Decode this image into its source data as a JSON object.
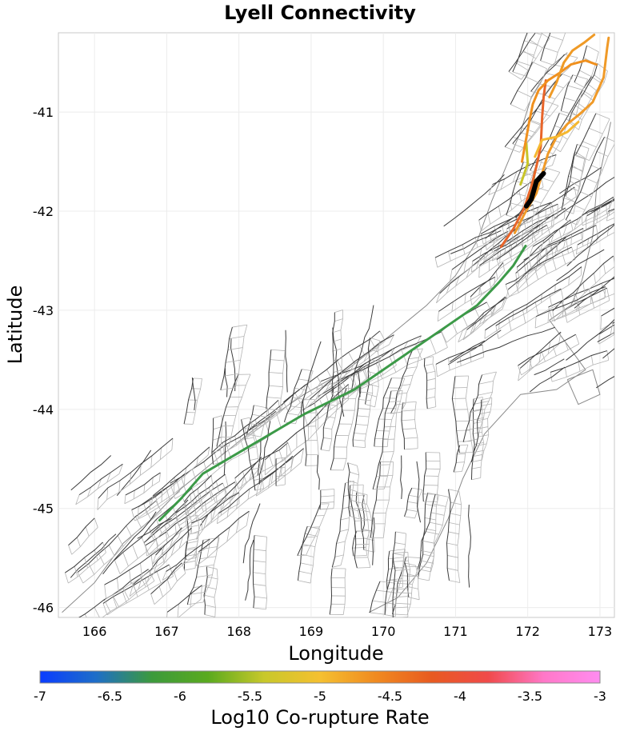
{
  "map": {
    "title": "Lyell Connectivity",
    "xlabel": "Longitude",
    "ylabel": "Latitude",
    "xlim": [
      165.5,
      173.2
    ],
    "ylim": [
      -46.1,
      -40.2
    ],
    "grid": true,
    "xticks": [
      "166",
      "167",
      "168",
      "169",
      "170",
      "171",
      "172",
      "173"
    ],
    "yticks": [
      "-41",
      "-42",
      "-43",
      "-44",
      "-45",
      "-46"
    ],
    "xtick_values": [
      166,
      167,
      168,
      169,
      170,
      171,
      172,
      173
    ],
    "ytick_values": [
      -41,
      -42,
      -43,
      -44,
      -45,
      -46
    ],
    "colors": {
      "fault_trace": "#3c3c3c",
      "fault_outline": "#b4b4b4",
      "coastline": "#8a8a8a",
      "source_fault": "#000000"
    }
  },
  "colorbar": {
    "label": "Log10 Co-rupture Rate",
    "ticks": [
      "-7",
      "-6.5",
      "-6",
      "-5.5",
      "-5",
      "-4.5",
      "-4",
      "-3.5",
      "-3"
    ],
    "tick_values": [
      -7,
      -6.5,
      -6,
      -5.5,
      -5,
      -4.5,
      -4,
      -3.5,
      -3
    ],
    "range": [
      -7,
      -3
    ],
    "gradient": [
      "#0a3cff",
      "#1e6ec8",
      "#3c9a3c",
      "#5aaa1e",
      "#c8c82a",
      "#f5c030",
      "#f08a20",
      "#e85a20",
      "#f04a4a",
      "#ff78c8",
      "#ff8cf0"
    ]
  },
  "chart_data": {
    "type": "map",
    "title": "Lyell Connectivity",
    "xlabel": "Longitude",
    "ylabel": "Latitude",
    "source_fault": {
      "color": "#000000",
      "points": [
        [
          172.22,
          -41.62
        ],
        [
          172.12,
          -41.7
        ],
        [
          172.05,
          -41.88
        ],
        [
          171.98,
          -41.95
        ]
      ]
    },
    "connected_faults": [
      {
        "log10_rate": -6.0,
        "color": "#3c9a48",
        "points": [
          [
            166.9,
            -45.12
          ],
          [
            167.2,
            -44.9
          ],
          [
            167.5,
            -44.65
          ],
          [
            168.2,
            -44.35
          ],
          [
            168.9,
            -44.05
          ],
          [
            169.6,
            -43.8
          ],
          [
            170.2,
            -43.5
          ],
          [
            170.8,
            -43.2
          ],
          [
            171.3,
            -42.95
          ],
          [
            171.6,
            -42.72
          ],
          [
            171.8,
            -42.55
          ],
          [
            171.97,
            -42.35
          ]
        ]
      },
      {
        "log10_rate": -6.0,
        "color": "#52a030",
        "points": [
          [
            172.0,
            -41.95
          ],
          [
            172.05,
            -41.8
          ],
          [
            172.1,
            -41.6
          ]
        ]
      },
      {
        "log10_rate": -4.2,
        "color": "#e8652a",
        "points": [
          [
            171.63,
            -42.36
          ],
          [
            171.8,
            -42.18
          ],
          [
            171.95,
            -41.97
          ],
          [
            172.05,
            -41.75
          ],
          [
            172.12,
            -41.55
          ],
          [
            172.18,
            -41.35
          ],
          [
            172.2,
            -41.05
          ],
          [
            172.22,
            -40.85
          ],
          [
            172.25,
            -40.68
          ]
        ]
      },
      {
        "log10_rate": -5.0,
        "color": "#c8c428",
        "points": [
          [
            171.9,
            -41.73
          ],
          [
            172.0,
            -41.52
          ],
          [
            171.98,
            -41.32
          ]
        ]
      },
      {
        "log10_rate": -4.4,
        "color": "#f09a28",
        "points": [
          [
            171.82,
            -42.22
          ],
          [
            171.96,
            -42.02
          ],
          [
            172.12,
            -41.82
          ],
          [
            172.2,
            -41.62
          ],
          [
            172.28,
            -41.42
          ],
          [
            172.4,
            -41.25
          ],
          [
            172.55,
            -41.12
          ],
          [
            172.72,
            -41.02
          ],
          [
            172.9,
            -40.9
          ],
          [
            173.05,
            -40.65
          ],
          [
            173.1,
            -40.35
          ],
          [
            173.12,
            -40.25
          ]
        ]
      },
      {
        "log10_rate": -4.6,
        "color": "#f5b830",
        "points": [
          [
            172.1,
            -41.45
          ],
          [
            172.2,
            -41.28
          ],
          [
            172.4,
            -41.25
          ],
          [
            172.55,
            -41.2
          ],
          [
            172.7,
            -41.1
          ]
        ]
      },
      {
        "log10_rate": -4.3,
        "color": "#f0901e",
        "points": [
          [
            171.92,
            -41.5
          ],
          [
            171.97,
            -41.3
          ],
          [
            172.02,
            -41.1
          ],
          [
            172.07,
            -40.92
          ],
          [
            172.15,
            -40.78
          ],
          [
            172.28,
            -40.68
          ],
          [
            172.45,
            -40.6
          ],
          [
            172.6,
            -40.52
          ],
          [
            172.8,
            -40.48
          ],
          [
            172.95,
            -40.52
          ]
        ]
      },
      {
        "log10_rate": -4.4,
        "color": "#ef9a26",
        "points": [
          [
            172.3,
            -40.85
          ],
          [
            172.4,
            -40.7
          ],
          [
            172.5,
            -40.5
          ],
          [
            172.62,
            -40.38
          ],
          [
            172.78,
            -40.3
          ],
          [
            172.92,
            -40.22
          ]
        ]
      }
    ]
  }
}
